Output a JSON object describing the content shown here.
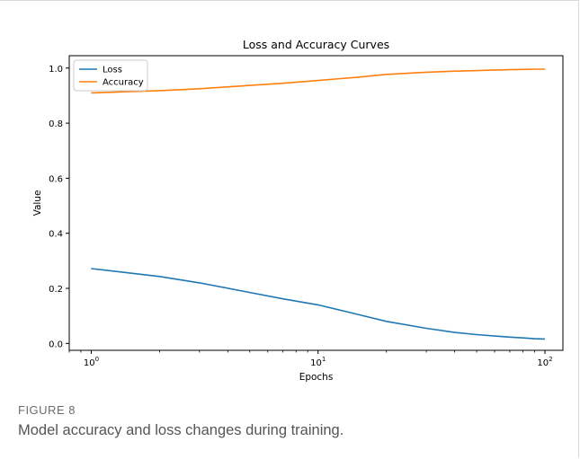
{
  "chart_data": {
    "type": "line",
    "title": "Loss and Accuracy Curves",
    "xlabel": "Epochs",
    "ylabel": "Value",
    "xscale": "log",
    "xlim": [
      0.8,
      120
    ],
    "ylim": [
      -0.025,
      1.045
    ],
    "yticks": [
      0.0,
      0.2,
      0.4,
      0.6,
      0.8,
      1.0
    ],
    "ytick_labels": [
      "0.0",
      "0.2",
      "0.4",
      "0.6",
      "0.8",
      "1.0"
    ],
    "xticks": [
      1,
      10,
      100
    ],
    "xtick_labels": [
      {
        "base": "10",
        "exp": "0"
      },
      {
        "base": "10",
        "exp": "1"
      },
      {
        "base": "10",
        "exp": "2"
      }
    ],
    "legend": "upper-left",
    "grid": false,
    "x": [
      1,
      2,
      3,
      5,
      7,
      10,
      15,
      20,
      30,
      40,
      50,
      60,
      70,
      80,
      90,
      100
    ],
    "series": [
      {
        "name": "Loss",
        "color": "#1f77b4",
        "values": [
          0.272,
          0.243,
          0.22,
          0.185,
          0.162,
          0.14,
          0.105,
          0.08,
          0.055,
          0.04,
          0.032,
          0.027,
          0.023,
          0.02,
          0.017,
          0.016
        ]
      },
      {
        "name": "Accuracy",
        "color": "#ff7f0e",
        "values": [
          0.91,
          0.918,
          0.925,
          0.937,
          0.945,
          0.955,
          0.967,
          0.977,
          0.985,
          0.989,
          0.991,
          0.993,
          0.994,
          0.995,
          0.996,
          0.996
        ]
      }
    ]
  },
  "caption": {
    "label": "FIGURE 8",
    "text": "Model accuracy and loss changes during training."
  }
}
